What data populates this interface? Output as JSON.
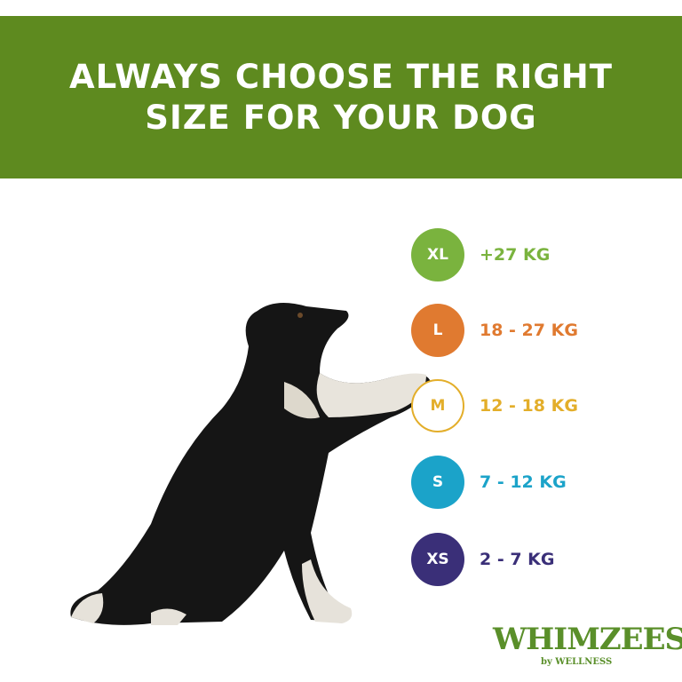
{
  "header": {
    "title": "ALWAYS CHOOSE THE RIGHT SIZE FOR YOUR DOG",
    "color": "#5e8a1f"
  },
  "sizes": [
    {
      "code": "XL",
      "range": "+27 KG",
      "color": "#7ab33e",
      "style": "filled"
    },
    {
      "code": "L",
      "range": "18 - 27 KG",
      "color": "#e07a30",
      "style": "filled"
    },
    {
      "code": "M",
      "range": "12 - 18 KG",
      "color": "#e3ae2a",
      "style": "outline"
    },
    {
      "code": "S",
      "range": "7 - 12 KG",
      "color": "#1ba3c9",
      "style": "filled"
    },
    {
      "code": "XS",
      "range": "2 - 7 KG",
      "color": "#3a2f78",
      "style": "filled"
    }
  ],
  "logo": {
    "brand": "WHIMZEES",
    "byline": "by WELLNESS"
  },
  "image": {
    "subject": "dog-icon"
  }
}
